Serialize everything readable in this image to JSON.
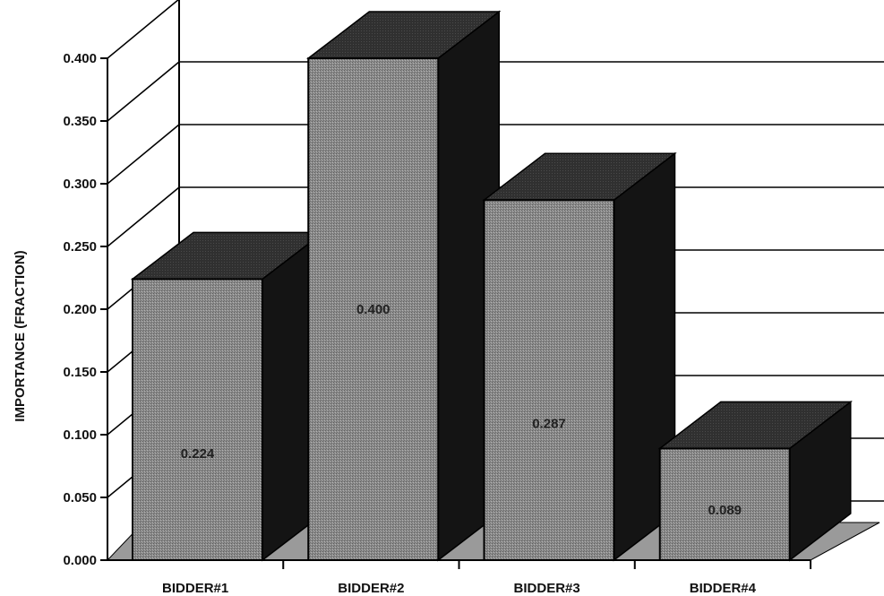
{
  "chart_data": {
    "type": "bar",
    "style": "3d",
    "categories": [
      "BIDDER#1",
      "BIDDER#2",
      "BIDDER#3",
      "BIDDER#4"
    ],
    "values": [
      0.224,
      0.4,
      0.287,
      0.089
    ],
    "data_labels": [
      "0.224",
      "0.400",
      "0.287",
      "0.089"
    ],
    "ylabel": "IMPORTANCE (FRACTION)",
    "xlabel": "",
    "ylim": [
      0,
      0.4
    ],
    "yticks": [
      "0.000",
      "0.050",
      "0.100",
      "0.150",
      "0.200",
      "0.250",
      "0.300",
      "0.350",
      "0.400"
    ],
    "grid": true,
    "colors": {
      "bar_front": "#8a8a8a",
      "bar_top": "#2e2e2e",
      "bar_side": "#141414",
      "floor": "#9a9a9a",
      "line": "#000000"
    }
  }
}
